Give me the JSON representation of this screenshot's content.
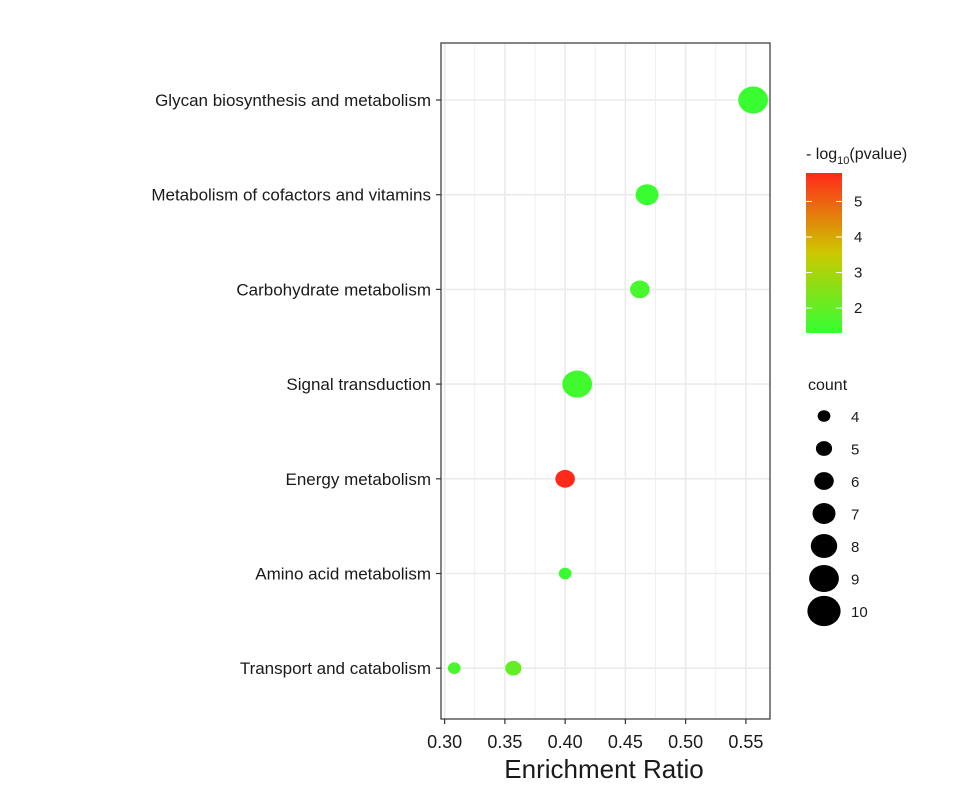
{
  "chart_data": {
    "type": "scatter",
    "title": "",
    "xlabel": "Enrichment Ratio",
    "ylabel": "",
    "xlim": [
      0.297,
      0.57
    ],
    "x_ticks": [
      0.3,
      0.35,
      0.4,
      0.45,
      0.5,
      0.55
    ],
    "x_tick_labels": [
      "0.30",
      "0.35",
      "0.40",
      "0.45",
      "0.50",
      "0.55"
    ],
    "categories": [
      "Glycan biosynthesis and metabolism",
      "Metabolism of cofactors and vitamins",
      "Carbohydrate metabolism",
      "Signal transduction",
      "Energy metabolism",
      "Amino acid metabolism",
      "Transport and catabolism"
    ],
    "points": [
      {
        "category": "Glycan biosynthesis and metabolism",
        "x": 0.556,
        "count": 9,
        "neg_log10_pvalue": 1.4
      },
      {
        "category": "Metabolism of cofactors and vitamins",
        "x": 0.468,
        "count": 7,
        "neg_log10_pvalue": 1.4
      },
      {
        "category": "Carbohydrate metabolism",
        "x": 0.462,
        "count": 6,
        "neg_log10_pvalue": 1.6
      },
      {
        "category": "Signal transduction",
        "x": 0.41,
        "count": 9,
        "neg_log10_pvalue": 1.5
      },
      {
        "category": "Energy metabolism",
        "x": 0.4,
        "count": 6,
        "neg_log10_pvalue": 5.8
      },
      {
        "category": "Amino acid metabolism",
        "x": 0.4,
        "count": 4,
        "neg_log10_pvalue": 1.4
      },
      {
        "category": "Transport and catabolism",
        "x": 0.308,
        "count": 4,
        "neg_log10_pvalue": 1.6
      },
      {
        "category": "Transport and catabolism",
        "x": 0.357,
        "count": 5,
        "neg_log10_pvalue": 2.0
      }
    ],
    "color_legend": {
      "title_prefix": "- log",
      "title_subscript": "10",
      "title_suffix": "(pvalue)",
      "range": [
        1.3,
        5.8
      ],
      "ticks": [
        2,
        3,
        4,
        5
      ],
      "tick_labels": [
        "2",
        "3",
        "4",
        "5"
      ],
      "low_color": "#33ff33",
      "high_color": "#ff2a1a"
    },
    "size_legend": {
      "title": "count",
      "values": [
        4,
        5,
        6,
        7,
        8,
        9,
        10
      ],
      "labels": [
        "4",
        "5",
        "6",
        "7",
        "8",
        "9",
        "10"
      ]
    },
    "grid": true,
    "legend_position": "right",
    "panel_background": "#ffffff",
    "grid_color": "#ebebeb"
  }
}
